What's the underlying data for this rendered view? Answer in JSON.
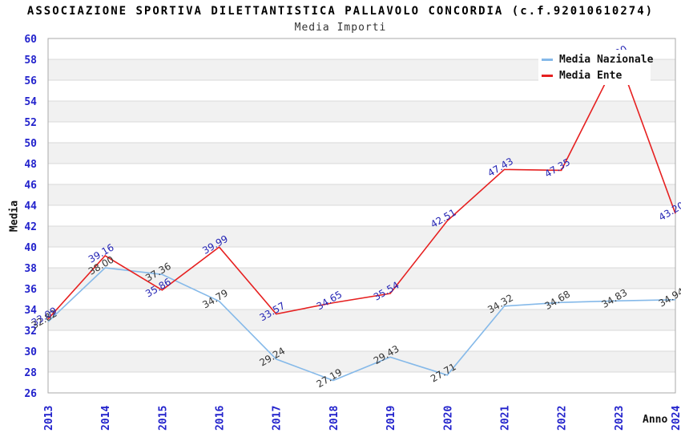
{
  "header": {
    "title": "ASSOCIAZIONE SPORTIVA DILETTANTISTICA PALLAVOLO CONCORDIA (c.f.92010610274)",
    "subtitle": "Media Importi"
  },
  "chart_data": {
    "type": "line",
    "x": [
      "2013",
      "2014",
      "2015",
      "2016",
      "2017",
      "2018",
      "2019",
      "2020",
      "2021",
      "2022",
      "2023",
      "2024"
    ],
    "series": [
      {
        "name": "Media Nazionale",
        "color": "#85B9E9",
        "label_color": "#333333",
        "values": [
          32.82,
          38.0,
          37.36,
          34.79,
          29.24,
          27.19,
          29.43,
          27.71,
          34.32,
          34.68,
          34.83,
          34.94
        ]
      },
      {
        "name": "Media Ente",
        "color": "#E62020",
        "label_color": "#2424B4",
        "values": [
          33.09,
          39.16,
          35.86,
          39.99,
          33.57,
          34.65,
          35.54,
          42.51,
          47.43,
          47.35,
          58.2,
          43.2
        ]
      }
    ],
    "title": "ASSOCIAZIONE SPORTIVA DILETTANTISTICA PALLAVOLO CONCORDIA (c.f.92010610274)",
    "subtitle": "Media Importi",
    "xlabel": "Anno",
    "ylabel": "Media",
    "ylim": [
      26,
      60
    ],
    "ytick_step": 2,
    "grid": true,
    "striped_bands": true,
    "legend_position": "top-right",
    "axis_tick_color": "#2222CC",
    "stripe_color": "#F1F1F1",
    "gridline_color": "#D9D9D9",
    "plot_border_color": "#AAAAAA"
  }
}
